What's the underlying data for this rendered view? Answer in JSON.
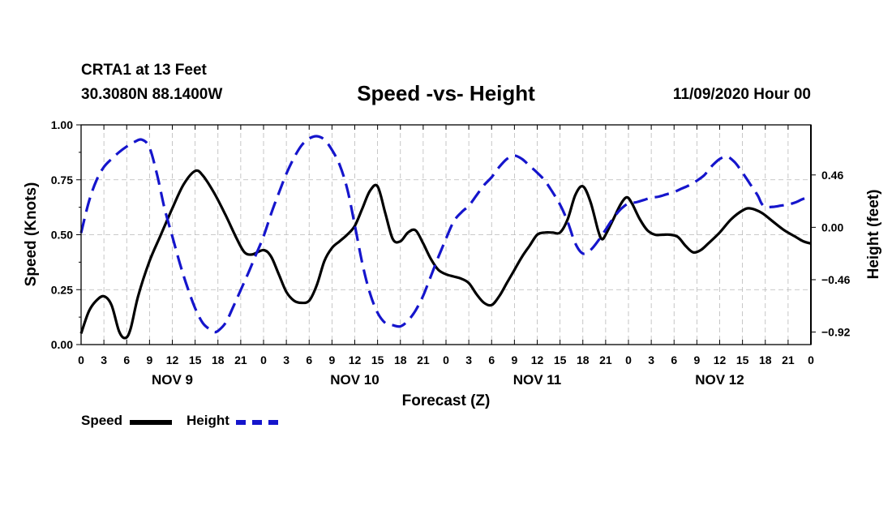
{
  "header": {
    "station": "CRTA1 at 13 Feet",
    "coords": "30.3080N 88.1400W",
    "title": "Speed -vs- Height",
    "date": "11/09/2020 Hour 00"
  },
  "chart_data": {
    "type": "line",
    "title": "Speed -vs- Height",
    "xlabel": "Forecast (Z)",
    "ylabel_left": "Speed (Knots)",
    "ylabel_right": "Height (feet)",
    "x_range_hours": [
      0,
      96
    ],
    "y_left_range": [
      0,
      1
    ],
    "y_right_range": [
      -1.03,
      0.9
    ],
    "y_left_ticks": [
      {
        "value": 0,
        "label": "0.00"
      },
      {
        "value": 0.25,
        "label": "0.25"
      },
      {
        "value": 0.5,
        "label": "0.50"
      },
      {
        "value": 0.75,
        "label": "0.75"
      },
      {
        "value": 1,
        "label": "1.00"
      }
    ],
    "y_right_ticks": [
      {
        "value": 0.46,
        "label": "0.46"
      },
      {
        "value": 0,
        "label": "0.00"
      },
      {
        "value": -0.46,
        "label": "−0.46"
      },
      {
        "value": -0.92,
        "label": "−0.92"
      }
    ],
    "x_ticks": [
      {
        "hour": 0,
        "label": "0"
      },
      {
        "hour": 3,
        "label": "3"
      },
      {
        "hour": 6,
        "label": "6"
      },
      {
        "hour": 9,
        "label": "9"
      },
      {
        "hour": 12,
        "label": "12"
      },
      {
        "hour": 15,
        "label": "15"
      },
      {
        "hour": 18,
        "label": "18"
      },
      {
        "hour": 21,
        "label": "21"
      },
      {
        "hour": 24,
        "label": "0"
      },
      {
        "hour": 27,
        "label": "3"
      },
      {
        "hour": 30,
        "label": "6"
      },
      {
        "hour": 33,
        "label": "9"
      },
      {
        "hour": 36,
        "label": "12"
      },
      {
        "hour": 39,
        "label": "15"
      },
      {
        "hour": 42,
        "label": "18"
      },
      {
        "hour": 45,
        "label": "21"
      },
      {
        "hour": 48,
        "label": "0"
      },
      {
        "hour": 51,
        "label": "3"
      },
      {
        "hour": 54,
        "label": "6"
      },
      {
        "hour": 57,
        "label": "9"
      },
      {
        "hour": 60,
        "label": "12"
      },
      {
        "hour": 63,
        "label": "15"
      },
      {
        "hour": 66,
        "label": "18"
      },
      {
        "hour": 69,
        "label": "21"
      },
      {
        "hour": 72,
        "label": "0"
      },
      {
        "hour": 75,
        "label": "3"
      },
      {
        "hour": 78,
        "label": "6"
      },
      {
        "hour": 81,
        "label": "9"
      },
      {
        "hour": 84,
        "label": "12"
      },
      {
        "hour": 87,
        "label": "15"
      },
      {
        "hour": 90,
        "label": "18"
      },
      {
        "hour": 93,
        "label": "21"
      },
      {
        "hour": 96,
        "label": "0"
      }
    ],
    "day_labels": [
      {
        "hour": 12,
        "label": "NOV 9"
      },
      {
        "hour": 36,
        "label": "NOV 10"
      },
      {
        "hour": 60,
        "label": "NOV 11"
      },
      {
        "hour": 84,
        "label": "NOV 12"
      }
    ],
    "grid": true,
    "series": [
      {
        "name": "Speed",
        "axis": "left",
        "color": "#000000",
        "style": "solid",
        "points": [
          [
            0,
            0.05
          ],
          [
            1,
            0.15
          ],
          [
            2,
            0.2
          ],
          [
            3,
            0.22
          ],
          [
            4,
            0.18
          ],
          [
            5,
            0.06
          ],
          [
            5.8,
            0.03
          ],
          [
            6.5,
            0.07
          ],
          [
            7.5,
            0.22
          ],
          [
            9,
            0.38
          ],
          [
            10.5,
            0.5
          ],
          [
            12,
            0.62
          ],
          [
            13.5,
            0.73
          ],
          [
            15,
            0.79
          ],
          [
            16,
            0.77
          ],
          [
            17.5,
            0.69
          ],
          [
            19,
            0.59
          ],
          [
            20.5,
            0.48
          ],
          [
            21.5,
            0.42
          ],
          [
            22.5,
            0.41
          ],
          [
            24,
            0.43
          ],
          [
            25,
            0.4
          ],
          [
            26,
            0.32
          ],
          [
            27,
            0.24
          ],
          [
            28,
            0.2
          ],
          [
            29,
            0.19
          ],
          [
            30,
            0.2
          ],
          [
            31,
            0.27
          ],
          [
            32,
            0.38
          ],
          [
            33,
            0.44
          ],
          [
            34,
            0.47
          ],
          [
            35,
            0.5
          ],
          [
            36,
            0.54
          ],
          [
            37,
            0.62
          ],
          [
            38,
            0.7
          ],
          [
            39,
            0.72
          ],
          [
            40,
            0.6
          ],
          [
            41,
            0.48
          ],
          [
            42,
            0.47
          ],
          [
            43,
            0.51
          ],
          [
            44,
            0.52
          ],
          [
            45,
            0.46
          ],
          [
            46,
            0.39
          ],
          [
            47,
            0.34
          ],
          [
            48,
            0.32
          ],
          [
            49,
            0.31
          ],
          [
            50,
            0.3
          ],
          [
            51,
            0.28
          ],
          [
            52,
            0.23
          ],
          [
            53,
            0.19
          ],
          [
            54,
            0.18
          ],
          [
            55,
            0.22
          ],
          [
            56,
            0.28
          ],
          [
            57,
            0.34
          ],
          [
            58,
            0.4
          ],
          [
            59,
            0.45
          ],
          [
            60,
            0.5
          ],
          [
            61,
            0.51
          ],
          [
            62,
            0.51
          ],
          [
            63,
            0.51
          ],
          [
            64,
            0.57
          ],
          [
            65,
            0.68
          ],
          [
            66,
            0.72
          ],
          [
            67,
            0.65
          ],
          [
            68,
            0.52
          ],
          [
            68.5,
            0.48
          ],
          [
            69,
            0.5
          ],
          [
            70,
            0.57
          ],
          [
            71,
            0.64
          ],
          [
            71.8,
            0.67
          ],
          [
            72.5,
            0.64
          ],
          [
            73.5,
            0.57
          ],
          [
            74.5,
            0.52
          ],
          [
            75.5,
            0.5
          ],
          [
            76.5,
            0.5
          ],
          [
            77.5,
            0.5
          ],
          [
            78.5,
            0.49
          ],
          [
            79.5,
            0.45
          ],
          [
            80.5,
            0.42
          ],
          [
            81.5,
            0.43
          ],
          [
            82.5,
            0.46
          ],
          [
            84,
            0.51
          ],
          [
            85.5,
            0.57
          ],
          [
            87,
            0.61
          ],
          [
            88,
            0.62
          ],
          [
            89.5,
            0.6
          ],
          [
            91,
            0.56
          ],
          [
            92.5,
            0.52
          ],
          [
            94,
            0.49
          ],
          [
            95,
            0.47
          ],
          [
            96,
            0.46
          ]
        ]
      },
      {
        "name": "Height",
        "axis": "right",
        "color": "#1515cc",
        "style": "dashed",
        "points": [
          [
            0,
            -0.05
          ],
          [
            1,
            0.22
          ],
          [
            2,
            0.41
          ],
          [
            3,
            0.53
          ],
          [
            4,
            0.6
          ],
          [
            5,
            0.66
          ],
          [
            6,
            0.71
          ],
          [
            7,
            0.75
          ],
          [
            8,
            0.77
          ],
          [
            9,
            0.7
          ],
          [
            10,
            0.46
          ],
          [
            11,
            0.16
          ],
          [
            12,
            -0.08
          ],
          [
            13,
            -0.32
          ],
          [
            14,
            -0.53
          ],
          [
            15,
            -0.71
          ],
          [
            16,
            -0.84
          ],
          [
            17,
            -0.9
          ],
          [
            17.5,
            -0.92
          ],
          [
            18,
            -0.91
          ],
          [
            19,
            -0.84
          ],
          [
            20,
            -0.7
          ],
          [
            21,
            -0.55
          ],
          [
            22,
            -0.4
          ],
          [
            23,
            -0.24
          ],
          [
            24,
            -0.08
          ],
          [
            25,
            0.12
          ],
          [
            26,
            0.3
          ],
          [
            27,
            0.47
          ],
          [
            28,
            0.61
          ],
          [
            29,
            0.72
          ],
          [
            30,
            0.78
          ],
          [
            31,
            0.8
          ],
          [
            32,
            0.77
          ],
          [
            33,
            0.68
          ],
          [
            34,
            0.55
          ],
          [
            35,
            0.34
          ],
          [
            36,
            0.02
          ],
          [
            37,
            -0.32
          ],
          [
            38,
            -0.58
          ],
          [
            39,
            -0.75
          ],
          [
            40,
            -0.84
          ],
          [
            41,
            -0.86
          ],
          [
            42,
            -0.87
          ],
          [
            43,
            -0.82
          ],
          [
            44,
            -0.73
          ],
          [
            45,
            -0.6
          ],
          [
            46,
            -0.43
          ],
          [
            47,
            -0.26
          ],
          [
            48,
            -0.1
          ],
          [
            49,
            0.05
          ],
          [
            50,
            0.13
          ],
          [
            51,
            0.19
          ],
          [
            52,
            0.28
          ],
          [
            53,
            0.37
          ],
          [
            54,
            0.44
          ],
          [
            55,
            0.53
          ],
          [
            56,
            0.6
          ],
          [
            57,
            0.63
          ],
          [
            58,
            0.6
          ],
          [
            59,
            0.54
          ],
          [
            60,
            0.48
          ],
          [
            61,
            0.41
          ],
          [
            62,
            0.31
          ],
          [
            63,
            0.2
          ],
          [
            64,
            0.05
          ],
          [
            65,
            -0.14
          ],
          [
            66,
            -0.23
          ],
          [
            67,
            -0.2
          ],
          [
            68,
            -0.12
          ],
          [
            69,
            -0.02
          ],
          [
            70,
            0.08
          ],
          [
            71,
            0.16
          ],
          [
            72,
            0.21
          ],
          [
            73,
            0.22
          ],
          [
            74,
            0.24
          ],
          [
            75,
            0.26
          ],
          [
            76,
            0.27
          ],
          [
            77,
            0.29
          ],
          [
            78,
            0.31
          ],
          [
            79,
            0.34
          ],
          [
            80,
            0.37
          ],
          [
            81,
            0.41
          ],
          [
            82,
            0.46
          ],
          [
            83,
            0.54
          ],
          [
            84,
            0.6
          ],
          [
            85,
            0.62
          ],
          [
            86,
            0.57
          ],
          [
            87,
            0.48
          ],
          [
            88,
            0.38
          ],
          [
            89,
            0.28
          ],
          [
            89.5,
            0.21
          ],
          [
            90,
            0.18
          ],
          [
            91,
            0.18
          ],
          [
            92,
            0.19
          ],
          [
            93,
            0.2
          ],
          [
            94,
            0.22
          ],
          [
            95,
            0.25
          ],
          [
            96,
            0.27
          ]
        ]
      }
    ]
  },
  "legend": {
    "speed_label": "Speed",
    "height_label": "Height"
  }
}
